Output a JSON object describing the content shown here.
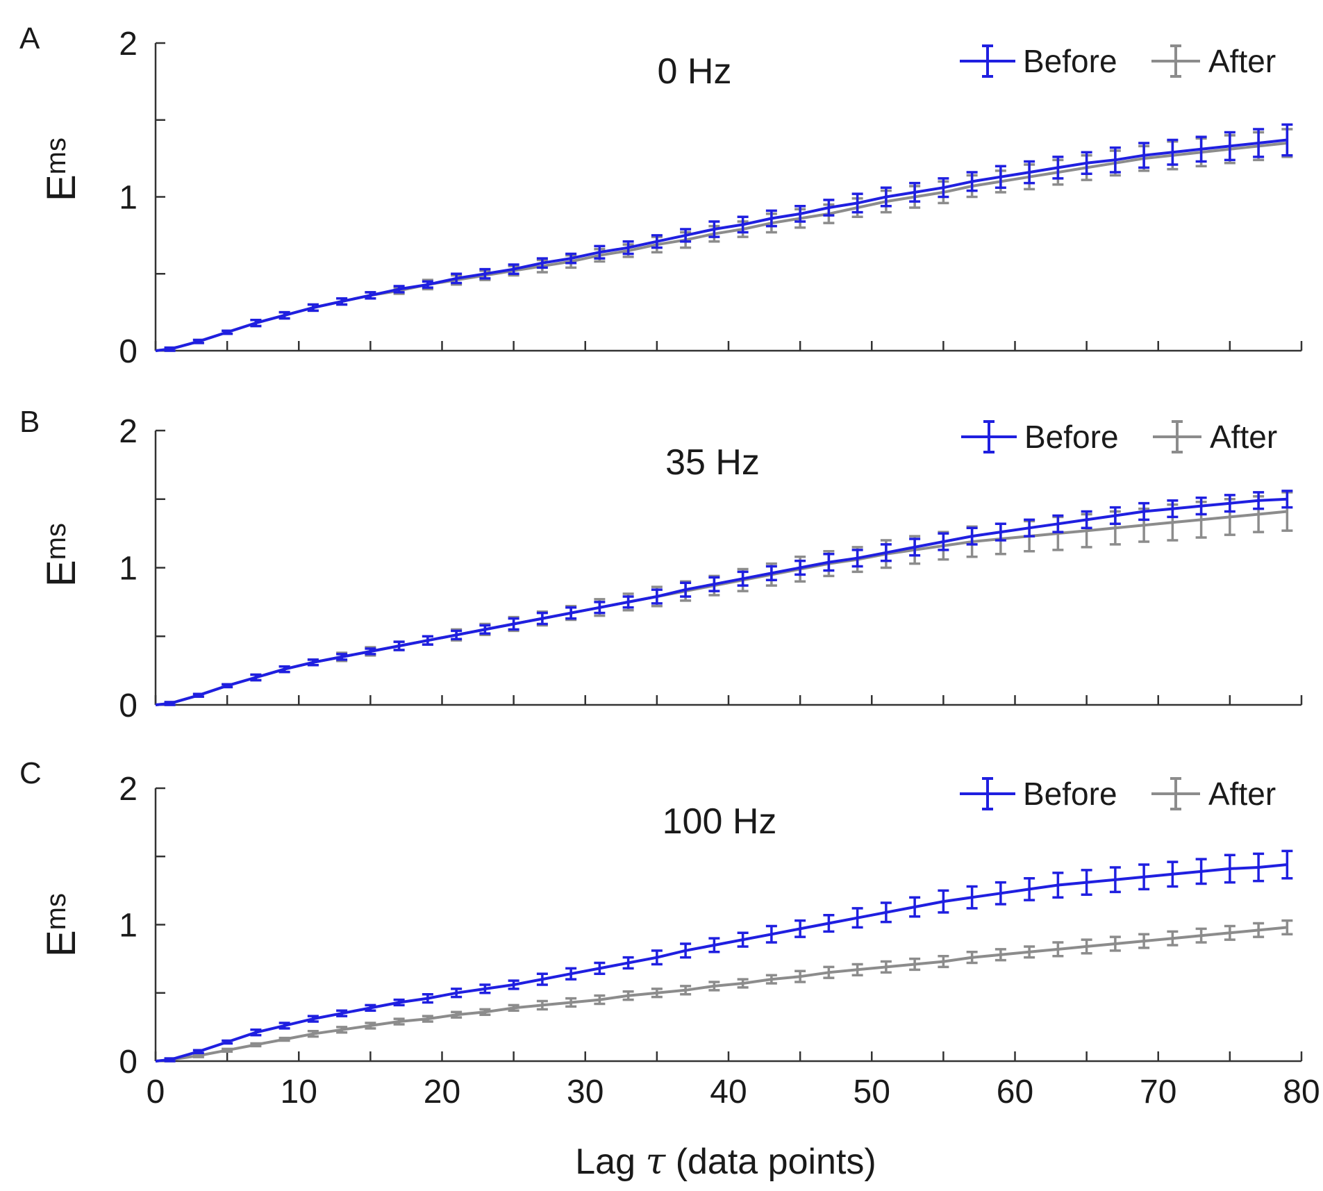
{
  "chart_data": [
    {
      "type": "line",
      "panel_label": "A",
      "title": "0 Hz",
      "xlabel_prefix": "Lag ",
      "xlabel_symbol": "τ",
      "xlabel_suffix": " (data points)",
      "ylabel_main": "E",
      "ylabel_sub": "ms",
      "xlim": [
        0,
        80
      ],
      "ylim": [
        0,
        2
      ],
      "xticks": [
        0,
        10,
        20,
        30,
        40,
        50,
        60,
        70,
        80
      ],
      "yticks": [
        0,
        1,
        2
      ],
      "grid": false,
      "legend_position": "top-right",
      "x": [
        1,
        3,
        5,
        7,
        9,
        11,
        13,
        15,
        17,
        19,
        21,
        23,
        25,
        27,
        29,
        31,
        33,
        35,
        37,
        39,
        41,
        43,
        45,
        47,
        49,
        51,
        53,
        55,
        57,
        59,
        61,
        63,
        65,
        67,
        69,
        71,
        73,
        75,
        77,
        79
      ],
      "series": [
        {
          "name": "Before",
          "color": "#1f1fe0",
          "values": [
            0.01,
            0.06,
            0.12,
            0.18,
            0.23,
            0.28,
            0.32,
            0.36,
            0.4,
            0.43,
            0.47,
            0.5,
            0.53,
            0.57,
            0.6,
            0.64,
            0.67,
            0.71,
            0.75,
            0.79,
            0.82,
            0.86,
            0.89,
            0.93,
            0.96,
            1.0,
            1.03,
            1.06,
            1.1,
            1.13,
            1.16,
            1.19,
            1.22,
            1.24,
            1.27,
            1.29,
            1.31,
            1.33,
            1.35,
            1.37
          ],
          "errors": [
            0.01,
            0.01,
            0.01,
            0.02,
            0.02,
            0.02,
            0.02,
            0.02,
            0.02,
            0.02,
            0.03,
            0.03,
            0.03,
            0.03,
            0.03,
            0.04,
            0.04,
            0.04,
            0.04,
            0.05,
            0.05,
            0.05,
            0.05,
            0.05,
            0.06,
            0.06,
            0.06,
            0.06,
            0.06,
            0.07,
            0.07,
            0.07,
            0.07,
            0.08,
            0.08,
            0.08,
            0.08,
            0.09,
            0.09,
            0.1
          ]
        },
        {
          "name": "After",
          "color": "#8c8c8c",
          "values": [
            0.01,
            0.06,
            0.12,
            0.18,
            0.23,
            0.28,
            0.32,
            0.36,
            0.39,
            0.43,
            0.46,
            0.49,
            0.52,
            0.55,
            0.58,
            0.62,
            0.65,
            0.69,
            0.72,
            0.76,
            0.79,
            0.83,
            0.86,
            0.89,
            0.93,
            0.97,
            1.0,
            1.03,
            1.07,
            1.1,
            1.13,
            1.16,
            1.19,
            1.22,
            1.25,
            1.27,
            1.29,
            1.31,
            1.33,
            1.35
          ],
          "errors": [
            0.01,
            0.01,
            0.01,
            0.02,
            0.02,
            0.02,
            0.02,
            0.02,
            0.02,
            0.03,
            0.03,
            0.03,
            0.03,
            0.04,
            0.04,
            0.04,
            0.04,
            0.05,
            0.05,
            0.05,
            0.05,
            0.06,
            0.06,
            0.06,
            0.06,
            0.07,
            0.07,
            0.07,
            0.07,
            0.07,
            0.08,
            0.08,
            0.08,
            0.08,
            0.08,
            0.09,
            0.09,
            0.09,
            0.09,
            0.09
          ]
        }
      ]
    },
    {
      "type": "line",
      "panel_label": "B",
      "title": "35 Hz",
      "xlim": [
        0,
        80
      ],
      "ylim": [
        0,
        2
      ],
      "xticks": [
        0,
        10,
        20,
        30,
        40,
        50,
        60,
        70,
        80
      ],
      "yticks": [
        0,
        1,
        2
      ],
      "grid": false,
      "legend_position": "top-right",
      "ylabel_main": "E",
      "ylabel_sub": "ms",
      "x": [
        1,
        3,
        5,
        7,
        9,
        11,
        13,
        15,
        17,
        19,
        21,
        23,
        25,
        27,
        29,
        31,
        33,
        35,
        37,
        39,
        41,
        43,
        45,
        47,
        49,
        51,
        53,
        55,
        57,
        59,
        61,
        63,
        65,
        67,
        69,
        71,
        73,
        75,
        77,
        79
      ],
      "series": [
        {
          "name": "Before",
          "color": "#1f1fe0",
          "values": [
            0.01,
            0.07,
            0.14,
            0.2,
            0.26,
            0.31,
            0.35,
            0.39,
            0.43,
            0.47,
            0.51,
            0.55,
            0.59,
            0.63,
            0.67,
            0.71,
            0.75,
            0.79,
            0.84,
            0.88,
            0.92,
            0.96,
            1.0,
            1.04,
            1.07,
            1.11,
            1.15,
            1.19,
            1.23,
            1.26,
            1.29,
            1.32,
            1.35,
            1.38,
            1.41,
            1.43,
            1.45,
            1.47,
            1.49,
            1.5
          ],
          "errors": [
            0.01,
            0.01,
            0.01,
            0.02,
            0.02,
            0.02,
            0.02,
            0.02,
            0.03,
            0.03,
            0.03,
            0.03,
            0.04,
            0.04,
            0.04,
            0.04,
            0.04,
            0.05,
            0.05,
            0.05,
            0.05,
            0.05,
            0.05,
            0.06,
            0.06,
            0.06,
            0.06,
            0.06,
            0.06,
            0.06,
            0.06,
            0.06,
            0.06,
            0.06,
            0.06,
            0.06,
            0.06,
            0.06,
            0.06,
            0.06
          ]
        },
        {
          "name": "After",
          "color": "#8c8c8c",
          "values": [
            0.01,
            0.07,
            0.14,
            0.2,
            0.26,
            0.31,
            0.35,
            0.39,
            0.43,
            0.47,
            0.51,
            0.55,
            0.59,
            0.63,
            0.67,
            0.71,
            0.75,
            0.79,
            0.83,
            0.87,
            0.91,
            0.95,
            0.99,
            1.03,
            1.06,
            1.1,
            1.13,
            1.16,
            1.19,
            1.21,
            1.23,
            1.25,
            1.27,
            1.29,
            1.31,
            1.33,
            1.35,
            1.37,
            1.39,
            1.41
          ],
          "errors": [
            0.01,
            0.01,
            0.01,
            0.02,
            0.02,
            0.02,
            0.03,
            0.03,
            0.03,
            0.03,
            0.04,
            0.04,
            0.05,
            0.05,
            0.05,
            0.06,
            0.06,
            0.07,
            0.07,
            0.07,
            0.08,
            0.08,
            0.09,
            0.09,
            0.09,
            0.1,
            0.1,
            0.1,
            0.11,
            0.11,
            0.11,
            0.12,
            0.12,
            0.12,
            0.12,
            0.13,
            0.13,
            0.13,
            0.13,
            0.14
          ]
        }
      ]
    },
    {
      "type": "line",
      "panel_label": "C",
      "title": "100 Hz",
      "xlim": [
        0,
        80
      ],
      "ylim": [
        0,
        2
      ],
      "xticks": [
        0,
        10,
        20,
        30,
        40,
        50,
        60,
        70,
        80
      ],
      "yticks": [
        0,
        1,
        2
      ],
      "grid": false,
      "legend_position": "top-right",
      "ylabel_main": "E",
      "ylabel_sub": "ms",
      "x": [
        1,
        3,
        5,
        7,
        9,
        11,
        13,
        15,
        17,
        19,
        21,
        23,
        25,
        27,
        29,
        31,
        33,
        35,
        37,
        39,
        41,
        43,
        45,
        47,
        49,
        51,
        53,
        55,
        57,
        59,
        61,
        63,
        65,
        67,
        69,
        71,
        73,
        75,
        77,
        79
      ],
      "series": [
        {
          "name": "Before",
          "color": "#1f1fe0",
          "values": [
            0.01,
            0.07,
            0.14,
            0.21,
            0.26,
            0.31,
            0.35,
            0.39,
            0.43,
            0.46,
            0.5,
            0.53,
            0.56,
            0.6,
            0.64,
            0.68,
            0.72,
            0.76,
            0.81,
            0.85,
            0.89,
            0.93,
            0.97,
            1.01,
            1.05,
            1.09,
            1.13,
            1.17,
            1.2,
            1.23,
            1.26,
            1.29,
            1.31,
            1.33,
            1.35,
            1.37,
            1.39,
            1.41,
            1.42,
            1.44
          ],
          "errors": [
            0.01,
            0.01,
            0.01,
            0.02,
            0.02,
            0.02,
            0.02,
            0.02,
            0.02,
            0.03,
            0.03,
            0.03,
            0.03,
            0.04,
            0.04,
            0.04,
            0.04,
            0.05,
            0.05,
            0.05,
            0.05,
            0.06,
            0.06,
            0.06,
            0.07,
            0.07,
            0.07,
            0.08,
            0.08,
            0.08,
            0.08,
            0.09,
            0.09,
            0.09,
            0.09,
            0.09,
            0.09,
            0.1,
            0.1,
            0.1
          ]
        },
        {
          "name": "After",
          "color": "#8c8c8c",
          "values": [
            0.01,
            0.04,
            0.08,
            0.12,
            0.16,
            0.2,
            0.23,
            0.26,
            0.29,
            0.31,
            0.34,
            0.36,
            0.39,
            0.41,
            0.43,
            0.45,
            0.48,
            0.5,
            0.52,
            0.55,
            0.57,
            0.6,
            0.62,
            0.65,
            0.67,
            0.69,
            0.71,
            0.73,
            0.76,
            0.78,
            0.8,
            0.82,
            0.84,
            0.86,
            0.88,
            0.9,
            0.92,
            0.94,
            0.96,
            0.98
          ],
          "errors": [
            0.01,
            0.01,
            0.01,
            0.01,
            0.01,
            0.02,
            0.02,
            0.02,
            0.02,
            0.02,
            0.02,
            0.02,
            0.02,
            0.03,
            0.03,
            0.03,
            0.03,
            0.03,
            0.03,
            0.03,
            0.03,
            0.03,
            0.04,
            0.04,
            0.04,
            0.04,
            0.04,
            0.04,
            0.04,
            0.04,
            0.04,
            0.05,
            0.05,
            0.05,
            0.05,
            0.05,
            0.05,
            0.05,
            0.05,
            0.05
          ]
        }
      ]
    }
  ],
  "xlabel_prefix": "Lag ",
  "xlabel_symbol": "τ",
  "xlabel_suffix": " (data points)"
}
